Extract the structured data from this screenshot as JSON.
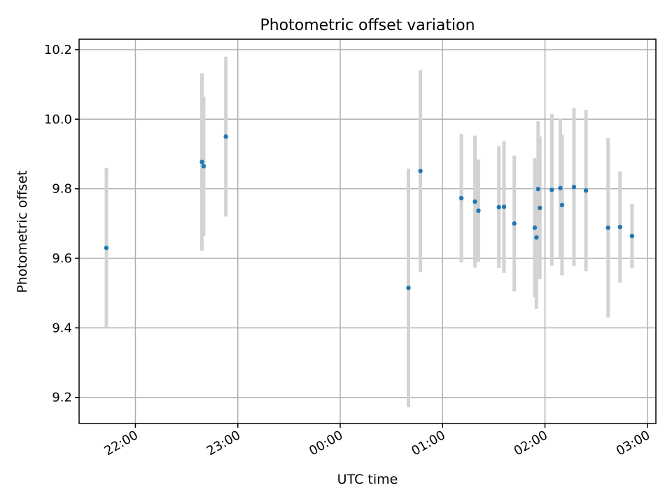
{
  "chart_data": {
    "type": "scatter",
    "title": "Photometric offset variation",
    "xlabel": "UTC time",
    "ylabel": "Photometric offset",
    "x_axis": "time",
    "xlim": [
      "21:27",
      "03:05"
    ],
    "ylim": [
      9.125,
      10.23
    ],
    "x_ticks": [
      "22:00",
      "23:00",
      "00:00",
      "01:00",
      "02:00",
      "03:00"
    ],
    "y_ticks": [
      "9.2",
      "9.4",
      "9.6",
      "9.8",
      "10.0",
      "10.2"
    ],
    "grid": true,
    "marker_color": "#1f77b4",
    "errorbar_color": "#d3d3d3",
    "points": [
      {
        "t": "21:43",
        "y": 9.63,
        "err": 0.23
      },
      {
        "t": "22:39",
        "y": 9.877,
        "err": 0.255
      },
      {
        "t": "22:40",
        "y": 9.865,
        "err": 0.2
      },
      {
        "t": "22:53",
        "y": 9.95,
        "err": 0.23
      },
      {
        "t": "00:40",
        "y": 9.515,
        "err": 0.343
      },
      {
        "t": "00:47",
        "y": 9.851,
        "err": 0.29
      },
      {
        "t": "01:11",
        "y": 9.773,
        "err": 0.185
      },
      {
        "t": "01:19",
        "y": 9.763,
        "err": 0.19
      },
      {
        "t": "01:21",
        "y": 9.737,
        "err": 0.147
      },
      {
        "t": "01:33",
        "y": 9.747,
        "err": 0.175
      },
      {
        "t": "01:36",
        "y": 9.748,
        "err": 0.19
      },
      {
        "t": "01:42",
        "y": 9.7,
        "err": 0.195
      },
      {
        "t": "01:54",
        "y": 9.688,
        "err": 0.2
      },
      {
        "t": "01:55",
        "y": 9.66,
        "err": 0.205
      },
      {
        "t": "01:56",
        "y": 9.799,
        "err": 0.195
      },
      {
        "t": "01:57",
        "y": 9.745,
        "err": 0.205
      },
      {
        "t": "02:04",
        "y": 9.797,
        "err": 0.218
      },
      {
        "t": "02:09",
        "y": 9.802,
        "err": 0.2
      },
      {
        "t": "02:10",
        "y": 9.753,
        "err": 0.202
      },
      {
        "t": "02:17",
        "y": 9.805,
        "err": 0.227
      },
      {
        "t": "02:24",
        "y": 9.795,
        "err": 0.232
      },
      {
        "t": "02:37",
        "y": 9.688,
        "err": 0.258
      },
      {
        "t": "02:44",
        "y": 9.69,
        "err": 0.16
      },
      {
        "t": "02:51",
        "y": 9.664,
        "err": 0.093
      }
    ]
  }
}
